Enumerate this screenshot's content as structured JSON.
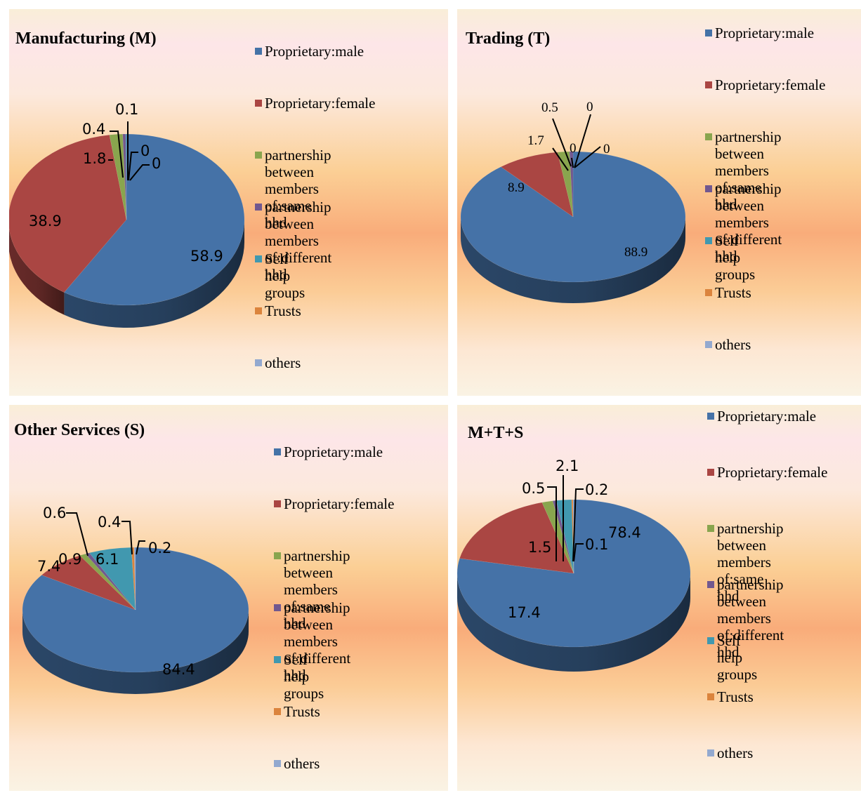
{
  "chart_data": [
    {
      "type": "pie",
      "title": "Manufacturing (M)",
      "legend_position": "right",
      "categories": [
        "Proprietary:male",
        "Proprietary:female",
        "partnership between\nmembers of:same hhd",
        "partnership between\nmembers of:different\nhhd",
        "Self help groups",
        "Trusts",
        "others"
      ],
      "values": [
        58.9,
        38.9,
        1.8,
        0.4,
        0.1,
        0,
        0
      ],
      "data_labels": [
        "58.9",
        "38.9",
        "1.8",
        "0.4",
        "0.1",
        "0",
        "0"
      ]
    },
    {
      "type": "pie",
      "title": "Trading (T)",
      "legend_position": "right",
      "categories": [
        "Proprietary:male",
        "Proprietary:female",
        "partnership between\nmembers of:same hhd",
        "partnership between\nmembers of:different\nhhd",
        "Self help groups",
        "Trusts",
        "others"
      ],
      "values": [
        88.9,
        8.9,
        1.7,
        0.5,
        0,
        0,
        0
      ],
      "data_labels": [
        "88.9",
        "8.9",
        "1.7",
        "0.5",
        "0",
        "0",
        "0"
      ]
    },
    {
      "type": "pie",
      "title": "Other Services (S)",
      "legend_position": "right",
      "categories": [
        "Proprietary:male",
        "Proprietary:female",
        "partnership between\nmembers of:same hhd",
        "partnership between\nmembers of:different\nhhd",
        "Self help groups",
        "Trusts",
        "others"
      ],
      "values": [
        84.4,
        7.4,
        0.9,
        0.6,
        6.1,
        0.4,
        0.2
      ],
      "data_labels": [
        "84.4",
        "7.4",
        "0.9",
        "0.6",
        "6.1",
        "0.4",
        "0.2"
      ]
    },
    {
      "type": "pie",
      "title": "M+T+S",
      "legend_position": "right",
      "categories": [
        "Proprietary:male",
        "Proprietary:female",
        "partnership between\nmembers of:same hhd",
        "partnership between\nmembers of:different\nhhd",
        "Self help groups",
        "Trusts",
        "others"
      ],
      "values": [
        78.4,
        17.4,
        1.5,
        0.5,
        2.1,
        0.2,
        0.1
      ],
      "data_labels": [
        "78.4",
        "17.4",
        "1.5",
        "0.5",
        "2.1",
        "0.2",
        "0.1"
      ]
    }
  ],
  "colors": [
    "#4572a7",
    "#aa4643",
    "#89a54e",
    "#71588f",
    "#4198af",
    "#db843d",
    "#93a9cf"
  ]
}
